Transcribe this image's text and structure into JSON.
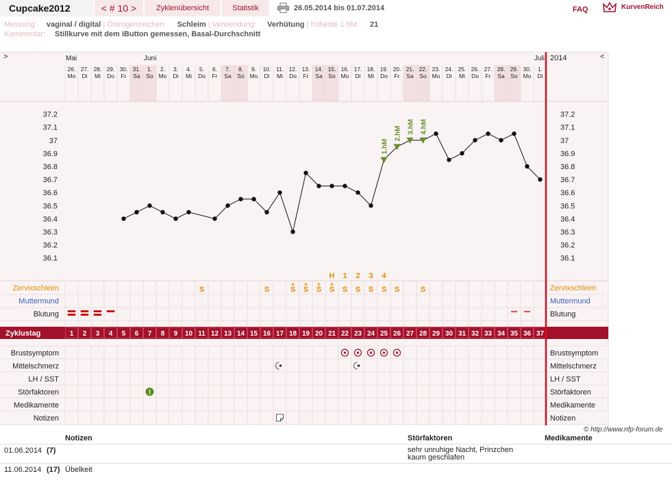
{
  "header": {
    "title": "Cupcake2012",
    "cycle_nav": "< # 10 >",
    "tab_overview": "Zyklenübersicht",
    "tab_stats": "Statistik",
    "date_range": "26.05.2014 bis 01.07.2014",
    "faq": "FAQ",
    "brand": "KurvenReich"
  },
  "meta": {
    "messung_label": "Messung:",
    "messung_value": "vaginal / digital",
    "oestrogen_label": "Östrogenzeichen:",
    "oestrogen_value": "Schleim",
    "verwendung_label": "Verwendung:",
    "verwendung_value": "Verhütung",
    "hm_label": "früheste 1.hM:",
    "hm_value": "21",
    "kommentar_label": "Kommentar:",
    "kommentar_value": "Stillkurve mit dem iButton gemessen, Basal-Durchschnitt"
  },
  "chart": {
    "nav_left": ">",
    "nav_right": "<",
    "year": "2014",
    "months": [
      {
        "label": "Mai",
        "day": 1
      },
      {
        "label": "Juni",
        "day": 7
      },
      {
        "label": "Juli",
        "day": 37
      }
    ],
    "days": [
      {
        "d": "26.",
        "w": "Mo"
      },
      {
        "d": "27.",
        "w": "Di"
      },
      {
        "d": "28.",
        "w": "Mi"
      },
      {
        "d": "29.",
        "w": "Do"
      },
      {
        "d": "30.",
        "w": "Fr"
      },
      {
        "d": "31.",
        "w": "Sa"
      },
      {
        "d": "1.",
        "w": "So"
      },
      {
        "d": "2.",
        "w": "Mo"
      },
      {
        "d": "3.",
        "w": "Di"
      },
      {
        "d": "4.",
        "w": "Mi"
      },
      {
        "d": "5.",
        "w": "Do"
      },
      {
        "d": "6.",
        "w": "Fr"
      },
      {
        "d": "7.",
        "w": "Sa"
      },
      {
        "d": "8.",
        "w": "So"
      },
      {
        "d": "9.",
        "w": "Mo"
      },
      {
        "d": "10.",
        "w": "Di"
      },
      {
        "d": "11.",
        "w": "Mi"
      },
      {
        "d": "12.",
        "w": "Do"
      },
      {
        "d": "13.",
        "w": "Fr"
      },
      {
        "d": "14.",
        "w": "Sa"
      },
      {
        "d": "15.",
        "w": "So"
      },
      {
        "d": "16.",
        "w": "Mo"
      },
      {
        "d": "17.",
        "w": "Di"
      },
      {
        "d": "18.",
        "w": "Mi"
      },
      {
        "d": "19.",
        "w": "Do"
      },
      {
        "d": "20.",
        "w": "Fr"
      },
      {
        "d": "21.",
        "w": "Sa"
      },
      {
        "d": "22.",
        "w": "So"
      },
      {
        "d": "23.",
        "w": "Mo"
      },
      {
        "d": "24.",
        "w": "Di"
      },
      {
        "d": "25.",
        "w": "Mi"
      },
      {
        "d": "26.",
        "w": "Do"
      },
      {
        "d": "27.",
        "w": "Fr"
      },
      {
        "d": "28.",
        "w": "Sa"
      },
      {
        "d": "29.",
        "w": "So"
      },
      {
        "d": "30.",
        "w": "Mo"
      },
      {
        "d": "1.",
        "w": "Di"
      }
    ],
    "weekend_days": [
      6,
      7,
      13,
      14,
      20,
      21,
      27,
      28,
      34,
      35
    ],
    "y_ticks": [
      "37.2",
      "37.1",
      "37",
      "36.9",
      "36.8",
      "36.7",
      "36.6",
      "36.5",
      "36.4",
      "36.3",
      "36.2",
      "36.1"
    ],
    "colors": {
      "accent": "#a3112a",
      "curve": "#111111",
      "hm": "#6a8f2e",
      "orange": "#e68a00",
      "blue": "#3a5fbf"
    }
  },
  "chart_data": {
    "type": "line",
    "ylim": [
      36.0,
      37.3
    ],
    "x": [
      5,
      6,
      7,
      8,
      9,
      10,
      12,
      13,
      14,
      15,
      16,
      17,
      18,
      19,
      20,
      21,
      22,
      23,
      24,
      25,
      26,
      27,
      28,
      29,
      30,
      31,
      32,
      33,
      34,
      35,
      36,
      37
    ],
    "values": [
      36.4,
      36.45,
      36.5,
      36.45,
      36.4,
      36.45,
      36.4,
      36.5,
      36.55,
      36.55,
      36.45,
      36.6,
      36.3,
      36.75,
      36.65,
      36.65,
      36.65,
      36.6,
      36.5,
      36.85,
      36.95,
      37.0,
      37.0,
      37.05,
      36.85,
      36.9,
      37.0,
      37.05,
      37.0,
      37.05,
      36.8,
      36.7
    ],
    "hm_markers": [
      {
        "day": 25,
        "label": "1.hM"
      },
      {
        "day": 26,
        "label": "2.hM"
      },
      {
        "day": 27,
        "label": "3.hM"
      },
      {
        "day": 28,
        "label": "4.hM"
      }
    ]
  },
  "rows": {
    "zervix_label": "Zervixschleim",
    "muttermund_label": "Muttermund",
    "blutung_label": "Blutung",
    "zyklustag_label": "Zyklustag",
    "brust_label": "Brustsymptom",
    "mittel_label": "Mittelschmerz",
    "lh_label": "LH / SST",
    "stoer_label": "Störfaktoren",
    "medi_label": "Medikamente",
    "notizen_label": "Notizen"
  },
  "zervix": {
    "s_days": [
      11,
      16,
      18,
      19,
      20,
      21,
      22,
      23,
      24,
      25,
      26,
      28
    ],
    "plus_days": [
      18,
      19,
      20,
      21
    ],
    "symbol": "S",
    "plus": "+",
    "peak_labels": [
      {
        "day": 21,
        "label": "H"
      },
      {
        "day": 22,
        "label": "1"
      },
      {
        "day": 23,
        "label": "2"
      },
      {
        "day": 24,
        "label": "3"
      },
      {
        "day": 25,
        "label": "4"
      }
    ]
  },
  "blutung": {
    "heavy_days": [
      1,
      2,
      3
    ],
    "medium_days": [
      4
    ],
    "spot_days": [
      35,
      36
    ]
  },
  "symptoms": {
    "brust_days": [
      22,
      23,
      24,
      25,
      26
    ],
    "mittel_days": [
      17,
      23
    ],
    "stoer_days": [
      7
    ],
    "stoer_icon": "warning-icon",
    "notiz_days": [
      17
    ],
    "notiz_icon": "note-icon"
  },
  "copyright": "© http://www.nfp-forum.de",
  "notes_table": {
    "headers": {
      "notizen": "Notizen",
      "stoer": "Störfaktoren",
      "medi": "Medikamente"
    },
    "rows": [
      {
        "date": "01.06.2014",
        "day": "(7)",
        "note": "",
        "stoer": "sehr unruhige Nacht, Prinzchen kaum geschlafen"
      },
      {
        "date": "11.06.2014",
        "day": "(17)",
        "note": "Übelkeit",
        "stoer": ""
      }
    ]
  }
}
